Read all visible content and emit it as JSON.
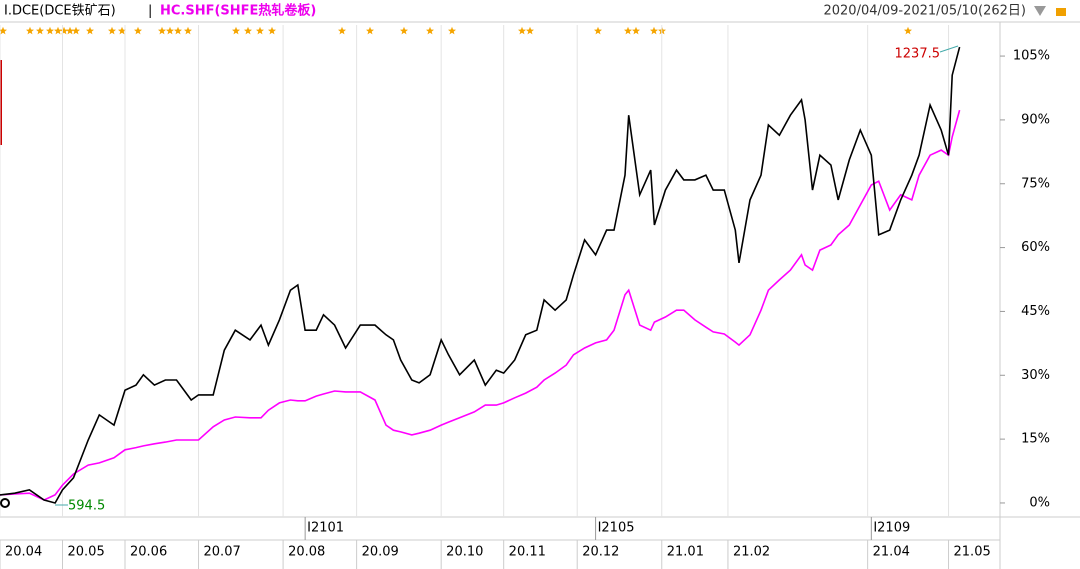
{
  "chart_data": {
    "type": "line",
    "header": {
      "left": "I.DCE(DCE铁矿石)",
      "separator": "|",
      "right": "HC.SHF(SHFE热轧卷板)",
      "range": "2020/04/09-2021/05/10(262日)"
    },
    "x": [
      0,
      4,
      8,
      12,
      15,
      17,
      20,
      24,
      27,
      31,
      34,
      37,
      39,
      42,
      45,
      48,
      52,
      54,
      58,
      61,
      64,
      68,
      71,
      73,
      76,
      79,
      81,
      83,
      86,
      88,
      91,
      94,
      98,
      102,
      105,
      107,
      109,
      112,
      114,
      117,
      120,
      122,
      125,
      129,
      132,
      135,
      137,
      140,
      143,
      146,
      148,
      151,
      154,
      156,
      159,
      162,
      165,
      167,
      170,
      171,
      174,
      177,
      178,
      181,
      184,
      186,
      189,
      192,
      194,
      197,
      200,
      201,
      204,
      207,
      209,
      212,
      215,
      218,
      219,
      221,
      223,
      226,
      228,
      231,
      234,
      237,
      239,
      242,
      245,
      248,
      250,
      253,
      256,
      258,
      259,
      261
    ],
    "series": [
      {
        "name": "I.DCE(DCE铁矿石)",
        "color": "#000000",
        "values": [
          1.9,
          2.3,
          3.1,
          0.7,
          0,
          3.1,
          5.9,
          14.8,
          20.7,
          18.3,
          26.5,
          27.7,
          30.1,
          27.7,
          28.9,
          28.9,
          24.2,
          25.4,
          25.4,
          35.9,
          40.6,
          38.3,
          41.8,
          37.1,
          43.0,
          50.0,
          51.2,
          40.6,
          40.6,
          44.2,
          41.8,
          36.4,
          41.8,
          41.8,
          39.5,
          38.3,
          33.6,
          28.9,
          28.2,
          30.1,
          38.3,
          34.8,
          30.1,
          33.6,
          27.7,
          31.2,
          30.5,
          33.6,
          39.5,
          40.6,
          47.7,
          45.3,
          47.7,
          53.6,
          61.8,
          58.3,
          64.1,
          64.1,
          77.0,
          91.1,
          72.4,
          78.2,
          65.3,
          73.5,
          78.2,
          75.9,
          75.9,
          77.0,
          73.5,
          73.5,
          64.1,
          56.4,
          71.2,
          77.0,
          88.8,
          86.4,
          91.1,
          94.7,
          90.0,
          73.5,
          81.7,
          79.4,
          71.2,
          80.6,
          87.6,
          81.7,
          63.0,
          64.1,
          71.2,
          77.0,
          81.7,
          93.5,
          87.6,
          81.7,
          100.5,
          107.1
        ]
      },
      {
        "name": "HC.SHF(SHFE热轧卷板)",
        "color": "#ff00ff",
        "values": [
          1.9,
          2.1,
          2.3,
          0.7,
          1.9,
          4.2,
          6.8,
          8.9,
          9.4,
          10.6,
          12.5,
          13.0,
          13.4,
          13.9,
          14.3,
          14.8,
          14.8,
          14.8,
          17.9,
          19.5,
          20.2,
          20.0,
          20.0,
          21.8,
          23.5,
          24.2,
          24.0,
          24.0,
          25.1,
          25.6,
          26.3,
          26.1,
          26.1,
          24.2,
          18.3,
          17.1,
          16.7,
          16.0,
          16.4,
          17.1,
          18.3,
          19.0,
          20.0,
          21.4,
          23.0,
          23.0,
          23.5,
          24.7,
          25.8,
          27.2,
          28.9,
          30.5,
          32.4,
          34.8,
          36.4,
          37.6,
          38.3,
          40.6,
          48.9,
          50.0,
          41.8,
          40.6,
          42.5,
          43.7,
          45.3,
          45.3,
          43.0,
          41.3,
          40.2,
          39.7,
          37.8,
          37.1,
          39.5,
          45.3,
          50.0,
          52.4,
          54.7,
          58.3,
          55.9,
          54.7,
          59.4,
          60.6,
          63.0,
          65.3,
          70.0,
          74.7,
          75.6,
          68.8,
          72.4,
          71.2,
          77.0,
          81.7,
          82.9,
          81.7,
          86.0,
          92.3
        ]
      }
    ],
    "xlim": [
      0,
      272
    ],
    "xticks": [
      {
        "value": 0,
        "label": "20.04"
      },
      {
        "value": 17,
        "label": "20.05"
      },
      {
        "value": 34,
        "label": "20.06"
      },
      {
        "value": 54,
        "label": "20.07"
      },
      {
        "value": 77,
        "label": "20.08"
      },
      {
        "value": 97,
        "label": "20.09"
      },
      {
        "value": 120,
        "label": "20.10"
      },
      {
        "value": 137,
        "label": "20.11"
      },
      {
        "value": 157,
        "label": "20.12"
      },
      {
        "value": 180,
        "label": "21.01"
      },
      {
        "value": 198,
        "label": "21.02"
      },
      {
        "value": 236,
        "label": "21.04"
      },
      {
        "value": 258,
        "label": "21.05"
      }
    ],
    "contracts": [
      {
        "value": 83,
        "label": "I2101"
      },
      {
        "value": 162,
        "label": "I2105"
      },
      {
        "value": 237,
        "label": "I2109"
      }
    ],
    "ylim": [
      -3.3,
      112.3
    ],
    "yticks": [
      {
        "value": 0,
        "label": "0%"
      },
      {
        "value": 15,
        "label": "15%"
      },
      {
        "value": 30,
        "label": "30%"
      },
      {
        "value": 45,
        "label": "45%"
      },
      {
        "value": 60,
        "label": "60%"
      },
      {
        "value": 75,
        "label": "75%"
      },
      {
        "value": 90,
        "label": "90%"
      },
      {
        "value": 105,
        "label": "105%"
      }
    ],
    "max_label": 1237.5,
    "min_label": 594.5,
    "grid": "x"
  }
}
